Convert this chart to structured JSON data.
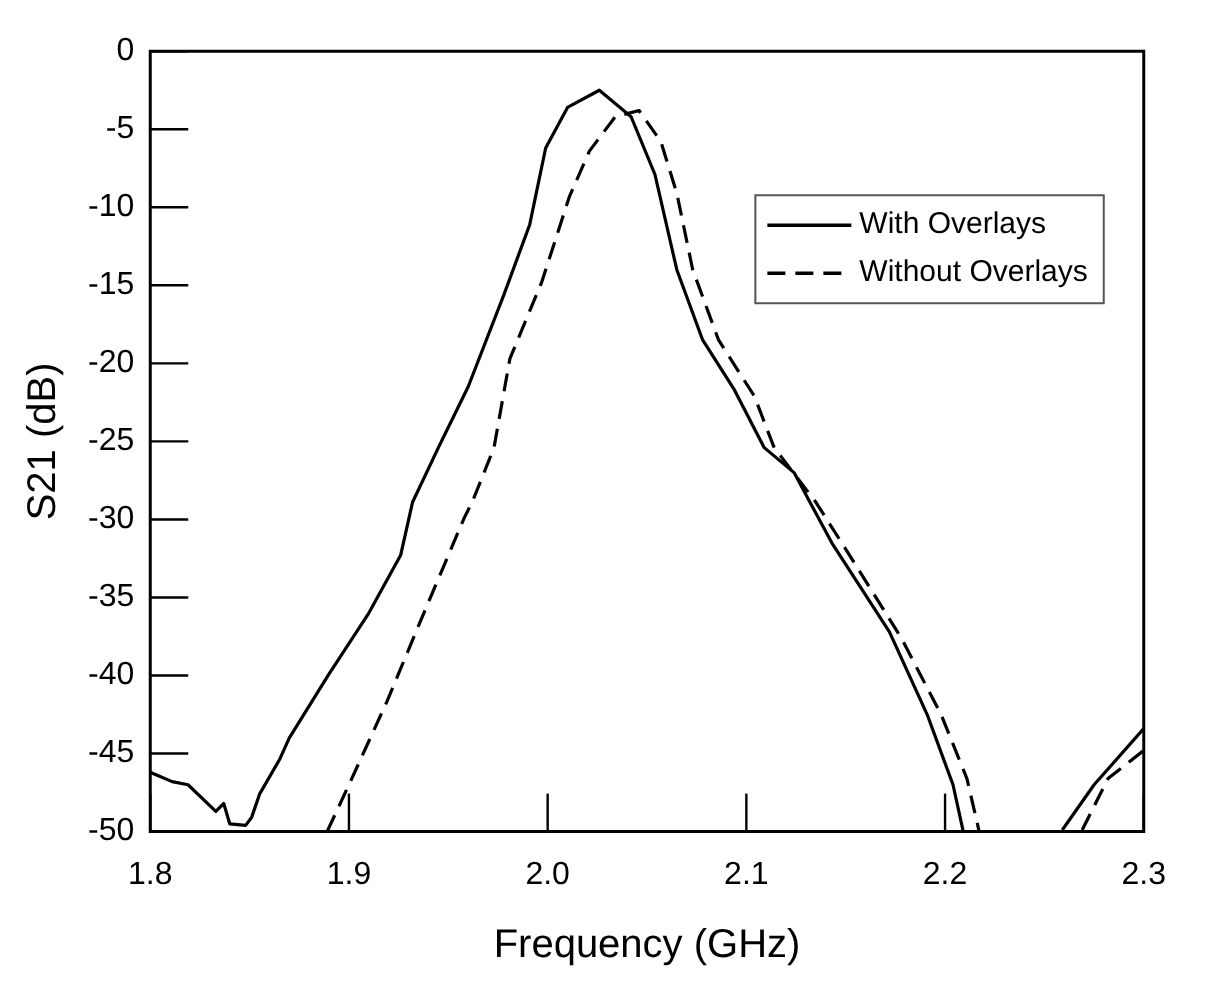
{
  "chart_data": {
    "type": "line",
    "xlabel": "Frequency (GHz)",
    "ylabel": "S21 (dB)",
    "xlim": [
      1.8,
      2.3
    ],
    "xticks": [
      {
        "value": 1.8,
        "label": "1.8"
      },
      {
        "value": 1.9,
        "label": "1.9"
      },
      {
        "value": 2.0,
        "label": "2.0"
      },
      {
        "value": 2.1,
        "label": "2.1"
      },
      {
        "value": 2.2,
        "label": "2.2"
      },
      {
        "value": 2.3,
        "label": "2.3"
      }
    ],
    "ylim": [
      -50,
      0
    ],
    "yticks": [
      -50,
      -45,
      -40,
      -35,
      -30,
      -25,
      -20,
      -15,
      -10,
      -5,
      0
    ],
    "grid": false,
    "legend": "top right",
    "marker": "none",
    "series": [
      {
        "name": "With Overlays",
        "color": "#000000",
        "line_style": "solid",
        "x": [
          1.8,
          1.811,
          1.819,
          1.833,
          1.837,
          1.84,
          1.848,
          1.851,
          1.855,
          1.865,
          1.87,
          1.89,
          1.91,
          1.926,
          1.932,
          1.945,
          1.96,
          1.978,
          1.991,
          1.999,
          2.01,
          2.026,
          2.042,
          2.054,
          2.065,
          2.078,
          2.094,
          2.109,
          2.124,
          2.143,
          2.172,
          2.191,
          2.204,
          2.209,
          2.234,
          2.259,
          2.275,
          2.3
        ],
        "values": [
          -46.2,
          -46.8,
          -47.0,
          -48.7,
          -48.2,
          -49.5,
          -49.6,
          -49.1,
          -47.6,
          -45.4,
          -44.0,
          -39.9,
          -36.0,
          -32.3,
          -28.9,
          -25.4,
          -21.5,
          -15.6,
          -11.1,
          -6.2,
          -3.6,
          -2.5,
          -4.2,
          -7.9,
          -14.0,
          -18.5,
          -21.7,
          -25.4,
          -27.0,
          -31.5,
          -37.2,
          -42.5,
          -47.0,
          -49.9,
          null,
          -49.9,
          -47.0,
          -43.4
        ]
      },
      {
        "name": "Without Overlays",
        "color": "#000000",
        "line_style": "dashed",
        "x": [
          1.889,
          1.9,
          1.919,
          1.939,
          1.958,
          1.962,
          1.973,
          1.981,
          1.997,
          2.011,
          2.021,
          2.034,
          2.046,
          2.057,
          2.065,
          2.073,
          2.086,
          2.104,
          2.114,
          2.135,
          2.148,
          2.178,
          2.198,
          2.211,
          2.217,
          2.243,
          2.269,
          2.282,
          2.3
        ],
        "values": [
          -50.0,
          -47.0,
          -41.7,
          -35.6,
          -29.9,
          -28.9,
          -25.4,
          -19.7,
          -14.8,
          -9.3,
          -6.4,
          -4.2,
          -3.8,
          -5.8,
          -9.1,
          -14.0,
          -18.5,
          -22.1,
          -25.4,
          -28.9,
          -31.5,
          -37.6,
          -42.5,
          -46.6,
          -49.9,
          null,
          -49.9,
          -46.6,
          -44.8
        ]
      }
    ]
  }
}
